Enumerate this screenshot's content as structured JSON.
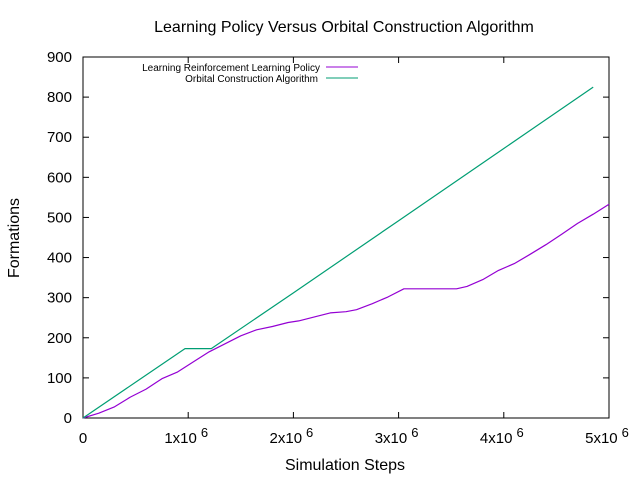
{
  "chart_data": {
    "type": "line",
    "title": "Learning Policy Versus Orbital Construction Algorithm",
    "xlabel": "Simulation Steps",
    "ylabel": "Formations",
    "xlim": [
      0,
      5000000
    ],
    "ylim": [
      0,
      900
    ],
    "x_ticks": [
      {
        "value": 0,
        "label": "0",
        "exp": ""
      },
      {
        "value": 1000000,
        "label": "1x10",
        "exp": "6"
      },
      {
        "value": 2000000,
        "label": "2x10",
        "exp": "6"
      },
      {
        "value": 3000000,
        "label": "3x10",
        "exp": "6"
      },
      {
        "value": 4000000,
        "label": "4x10",
        "exp": "6"
      },
      {
        "value": 5000000,
        "label": "5x10",
        "exp": "6"
      }
    ],
    "y_ticks": [
      0,
      100,
      200,
      300,
      400,
      500,
      600,
      700,
      800,
      900
    ],
    "grid": false,
    "legend_position": "top-left",
    "series": [
      {
        "name": "Learning Reinforcement Learning Policy",
        "color": "#9400d3",
        "x": [
          0,
          150000,
          300000,
          450000,
          600000,
          750000,
          900000,
          1050000,
          1200000,
          1350000,
          1500000,
          1650000,
          1800000,
          1950000,
          2050000,
          2200000,
          2350000,
          2500000,
          2600000,
          2750000,
          2900000,
          3050000,
          3200000,
          3400000,
          3550000,
          3650000,
          3800000,
          3950000,
          4100000,
          4250000,
          4400000,
          4550000,
          4700000,
          4850000,
          5000000
        ],
        "y": [
          0,
          12,
          28,
          52,
          72,
          98,
          115,
          140,
          165,
          185,
          205,
          220,
          228,
          238,
          242,
          252,
          262,
          265,
          270,
          285,
          302,
          322,
          322,
          322,
          322,
          328,
          345,
          368,
          385,
          408,
          432,
          458,
          485,
          508,
          533
        ]
      },
      {
        "name": "Orbital Construction Algorithm",
        "color": "#009e73",
        "x": [
          0,
          970000,
          1220000,
          2000000,
          3000000,
          4000000,
          4850000
        ],
        "y": [
          0,
          173,
          173,
          312,
          492,
          672,
          825
        ]
      }
    ]
  }
}
